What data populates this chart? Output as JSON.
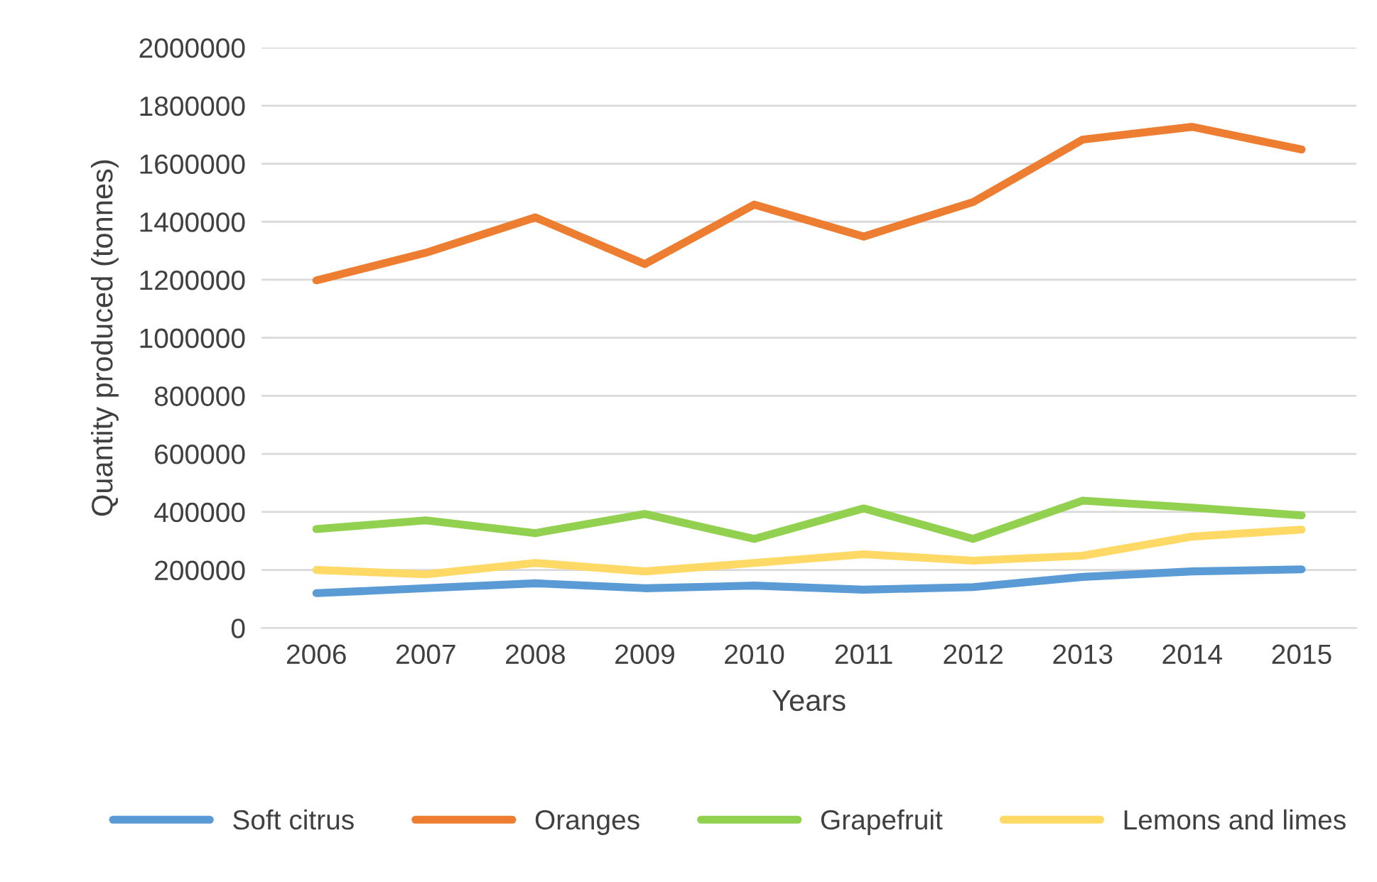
{
  "chart_data": {
    "type": "line",
    "xlabel": "Years",
    "ylabel": "Quantity produced (tonnes)",
    "categories": [
      "2006",
      "2007",
      "2008",
      "2009",
      "2010",
      "2011",
      "2012",
      "2013",
      "2014",
      "2015"
    ],
    "series": [
      {
        "name": "Soft citrus",
        "color": "#5b9bd5",
        "values": [
          120000,
          137000,
          154000,
          137000,
          146000,
          132000,
          141000,
          176000,
          195000,
          202000
        ]
      },
      {
        "name": "Oranges",
        "color": "#ed7d31",
        "values": [
          1198000,
          1293000,
          1415000,
          1254000,
          1459000,
          1349000,
          1468000,
          1683000,
          1727000,
          1649000
        ]
      },
      {
        "name": "Grapefruit",
        "color": "#92d050",
        "values": [
          341000,
          371000,
          327000,
          393000,
          307000,
          412000,
          307000,
          439000,
          415000,
          388000
        ]
      },
      {
        "name": "Lemons and limes",
        "color": "#ffd966",
        "values": [
          200000,
          185000,
          224000,
          195000,
          224000,
          254000,
          232000,
          249000,
          315000,
          339000
        ]
      }
    ],
    "ylim": [
      0,
      2000000
    ],
    "yticks": [
      0,
      200000,
      400000,
      600000,
      800000,
      1000000,
      1200000,
      1400000,
      1600000,
      1800000,
      2000000
    ],
    "grid": "y",
    "legend": "bottom",
    "marker": "none",
    "line_style": "solid"
  }
}
